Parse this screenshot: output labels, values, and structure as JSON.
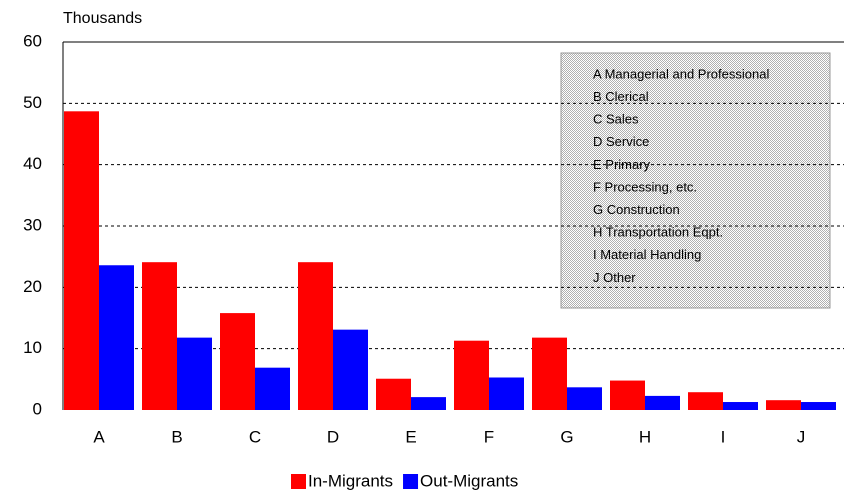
{
  "chart_data": {
    "type": "bar",
    "y_label": "Thousands",
    "categories": [
      "A",
      "B",
      "C",
      "D",
      "E",
      "F",
      "G",
      "H",
      "I",
      "J"
    ],
    "series": [
      {
        "name": "In-Migrants",
        "color": "#ff0000",
        "values": [
          48.7,
          24.1,
          15.8,
          24.1,
          5.1,
          11.3,
          11.8,
          4.8,
          2.9,
          1.6
        ]
      },
      {
        "name": "Out-Migrants",
        "color": "#0000ff",
        "values": [
          23.6,
          11.8,
          6.9,
          13.1,
          2.1,
          5.3,
          3.7,
          2.3,
          1.3,
          1.3
        ]
      }
    ],
    "ylim": [
      0,
      60
    ],
    "yticks": [
      0,
      10,
      20,
      30,
      40,
      50,
      60
    ],
    "grid": true,
    "annotations": [
      "A Managerial and Professional",
      "B Clerical",
      "C Sales",
      "D Service",
      "E Primary",
      "F Processing, etc.",
      "G Construction",
      "H Transportation Eqpt.",
      "I  Material Handling",
      "J Other"
    ]
  }
}
